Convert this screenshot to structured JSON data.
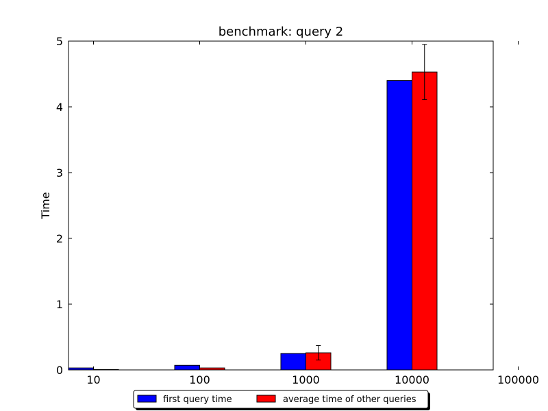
{
  "chart_data": {
    "type": "bar",
    "title": "benchmark: query 2",
    "xlabel": "",
    "ylabel": "Time",
    "ylim": [
      0,
      5
    ],
    "yticks": [
      "0",
      "1",
      "2",
      "3",
      "4",
      "5"
    ],
    "categories": [
      "10",
      "100",
      "1000",
      "10000",
      "100000"
    ],
    "series": [
      {
        "name": "first query time",
        "color": "#0000ff",
        "values": [
          0.03,
          0.07,
          0.25,
          4.4,
          null
        ],
        "errors": [
          0,
          0,
          0,
          0,
          null
        ]
      },
      {
        "name": "average time of other queries",
        "color": "#ff0000",
        "values": [
          0.005,
          0.03,
          0.26,
          4.53,
          null
        ],
        "errors": [
          0.0,
          0.0,
          0.11,
          0.42,
          null
        ]
      }
    ],
    "legend": "bottom-center",
    "grid": false
  }
}
